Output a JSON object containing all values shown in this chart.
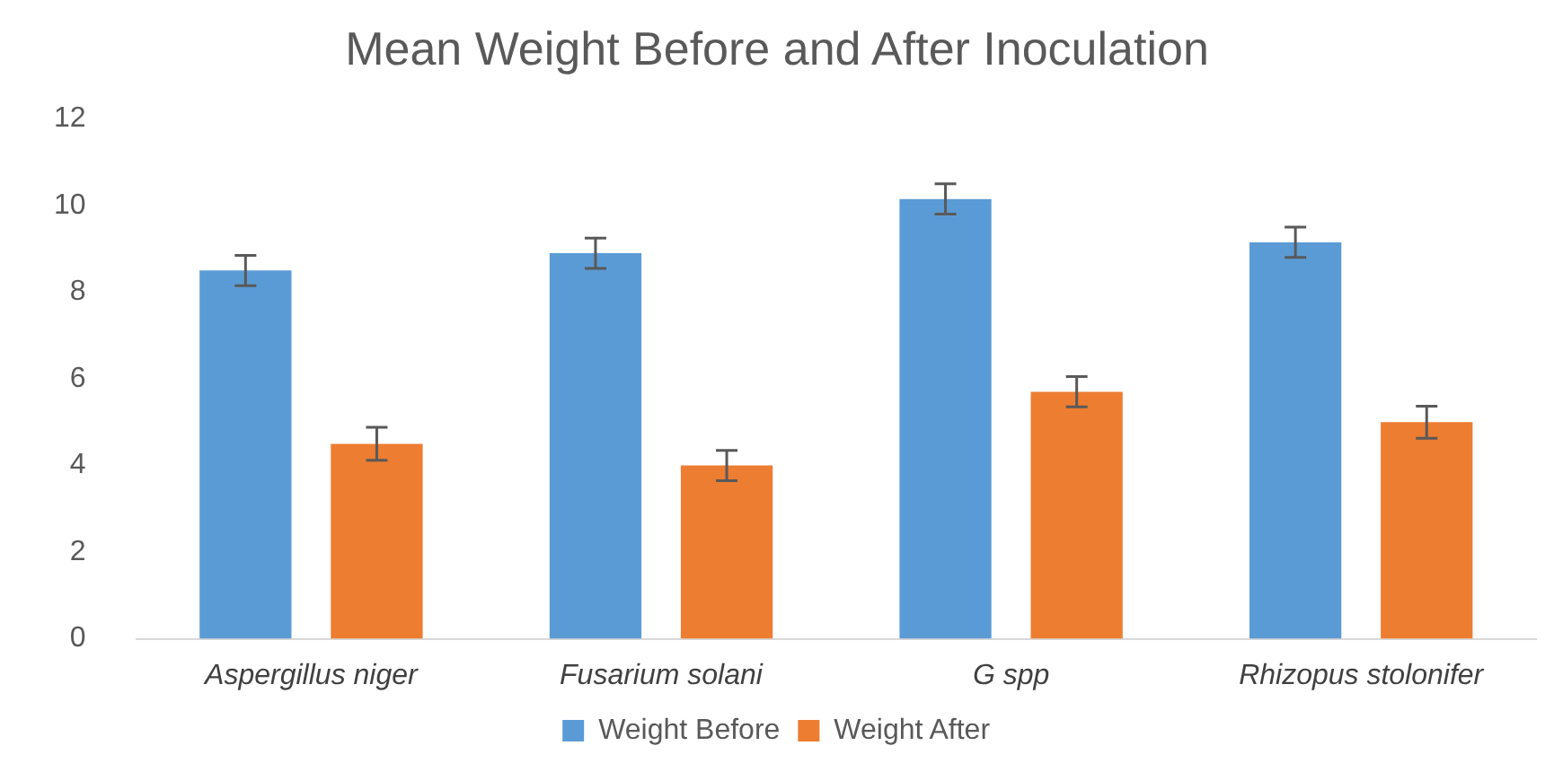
{
  "chart_data": {
    "type": "bar",
    "title": "Mean Weight Before and After Inoculation",
    "categories": [
      "Aspergillus niger",
      "Fusarium solani",
      "G spp",
      "Rhizopus stolonifer"
    ],
    "series": [
      {
        "name": "Weight Before",
        "color": "#5b9bd5",
        "values": [
          8.5,
          8.9,
          10.15,
          9.15
        ],
        "errors": [
          0.35,
          0.35,
          0.35,
          0.35
        ]
      },
      {
        "name": "Weight After",
        "color": "#ed7d31",
        "values": [
          4.5,
          4.0,
          5.7,
          5.0
        ],
        "errors": [
          0.38,
          0.35,
          0.35,
          0.37
        ]
      }
    ],
    "ylim": [
      0,
      12
    ],
    "yticks": [
      0,
      2,
      4,
      6,
      8,
      10,
      12
    ],
    "grid": false,
    "legend": "bottom"
  }
}
